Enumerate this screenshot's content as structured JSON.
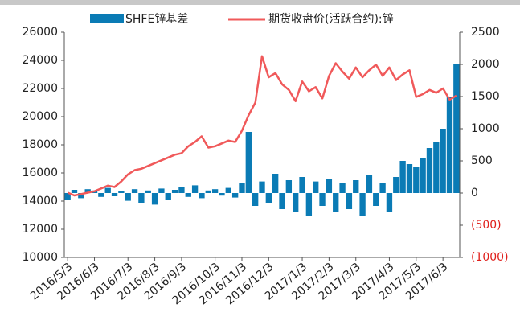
{
  "chart_data": {
    "type": "bar-line",
    "categories": [
      "2016/5/3",
      null,
      null,
      null,
      "2016/6/3",
      null,
      null,
      null,
      null,
      "2016/7/3",
      null,
      null,
      null,
      "2016/8/3",
      null,
      null,
      null,
      "2016/9/3",
      null,
      null,
      null,
      null,
      "2016/10/3",
      null,
      null,
      null,
      "2016/11/3",
      null,
      null,
      null,
      "2016/12/3",
      null,
      null,
      null,
      null,
      "2017/1/3",
      null,
      null,
      null,
      "2017/2/3",
      null,
      null,
      null,
      "2017/3/3",
      null,
      null,
      null,
      null,
      "2017/4/3",
      null,
      null,
      null,
      "2017/5/3",
      null,
      null,
      null,
      "2017/6/3",
      null,
      null
    ],
    "series": [
      {
        "name": "SHFE锌基差",
        "color": "#0a7bb5",
        "axis": "y2",
        "kind": "bar",
        "values": [
          -100,
          50,
          -80,
          60,
          40,
          -60,
          80,
          -50,
          30,
          -120,
          60,
          -150,
          40,
          -180,
          70,
          -100,
          50,
          90,
          -60,
          120,
          -80,
          40,
          60,
          -40,
          80,
          -70,
          150,
          950,
          -200,
          180,
          -150,
          300,
          -250,
          200,
          -300,
          250,
          -350,
          180,
          -200,
          220,
          -300,
          150,
          -250,
          200,
          -350,
          280,
          -200,
          150,
          -300,
          250,
          500,
          450,
          400,
          550,
          700,
          800,
          1000,
          1500,
          2000
        ]
      },
      {
        "name": "期货收盘价(活跃合约):锌",
        "color": "#f0595a",
        "axis": "y",
        "kind": "line",
        "values": [
          14600,
          14400,
          14500,
          14600,
          14700,
          14900,
          15100,
          15000,
          15400,
          15900,
          16200,
          16300,
          16500,
          16700,
          16900,
          17100,
          17300,
          17400,
          17900,
          18200,
          18600,
          17800,
          17900,
          18100,
          18300,
          18200,
          19000,
          20100,
          21000,
          24300,
          22800,
          23100,
          22300,
          21900,
          21100,
          22500,
          21800,
          22100,
          21300,
          22900,
          23800,
          23200,
          22700,
          23500,
          22800,
          23300,
          23700,
          22900,
          23500,
          22600,
          23000,
          23300,
          21400,
          21600,
          21900,
          21700,
          22000,
          21200,
          21500
        ]
      }
    ],
    "ylim": [
      10000,
      26000
    ],
    "yticks": [
      10000,
      12000,
      14000,
      16000,
      18000,
      20000,
      22000,
      24000,
      26000
    ],
    "y2lim": [
      -1000,
      2500
    ],
    "y2ticks": [
      {
        "value": -1000,
        "label": "(1000)"
      },
      {
        "value": -500,
        "label": "(500)"
      },
      0,
      500,
      1000,
      1500,
      2000,
      2500
    ],
    "negative_tick_color": "#e0201c",
    "legend": "top"
  }
}
